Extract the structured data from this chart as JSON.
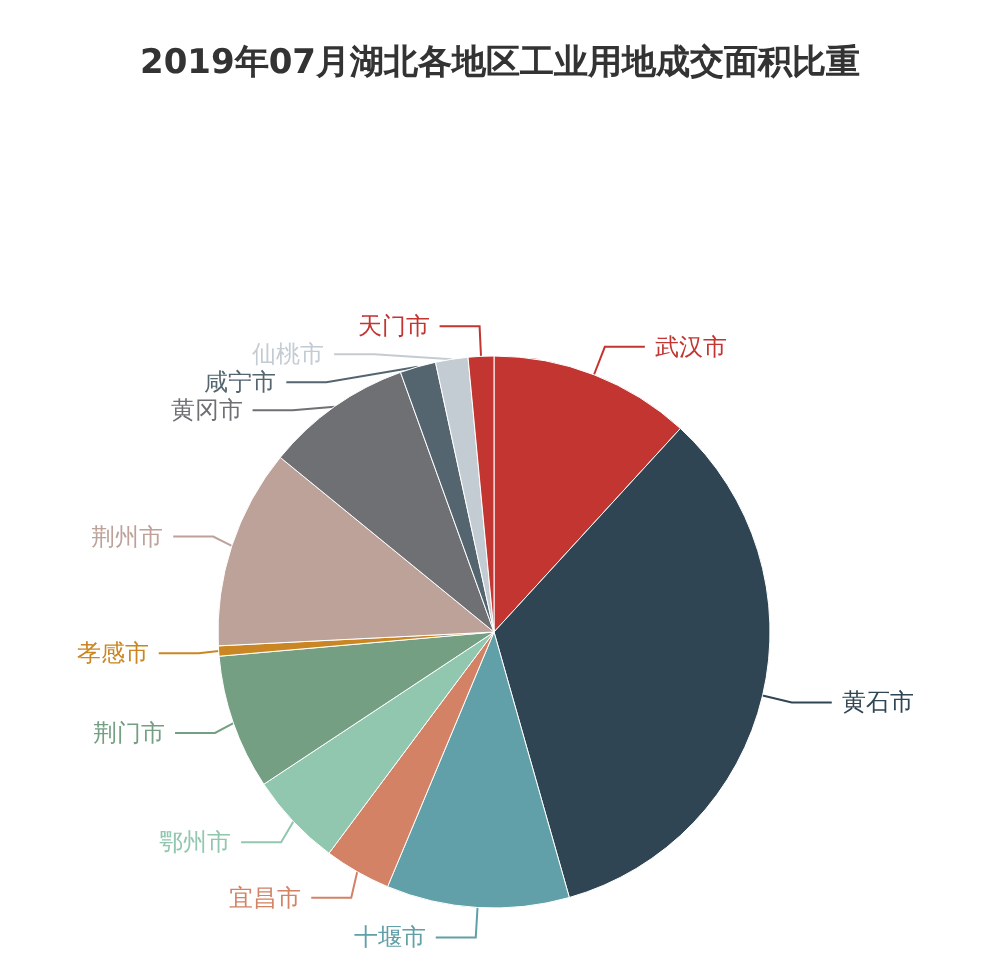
{
  "chart_data": {
    "type": "pie",
    "title": "2019年07月湖北各地区工业用地成交面积比重",
    "categories": [
      "武汉市",
      "黄石市",
      "十堰市",
      "宜昌市",
      "鄂州市",
      "荆门市",
      "孝感市",
      "荆州市",
      "黄冈市",
      "咸宁市",
      "仙桃市",
      "天门市"
    ],
    "values": [
      11.8,
      33.8,
      10.7,
      3.9,
      5.5,
      7.9,
      0.6,
      11.7,
      8.6,
      2.1,
      1.9,
      1.5
    ],
    "colors": [
      "#c23531",
      "#2f4554",
      "#61a0a8",
      "#d48265",
      "#91c7ae",
      "#749f83",
      "#ca8622",
      "#bda29a",
      "#6e7074",
      "#546570",
      "#c4ccd3",
      "#c23531"
    ],
    "legend": false
  }
}
